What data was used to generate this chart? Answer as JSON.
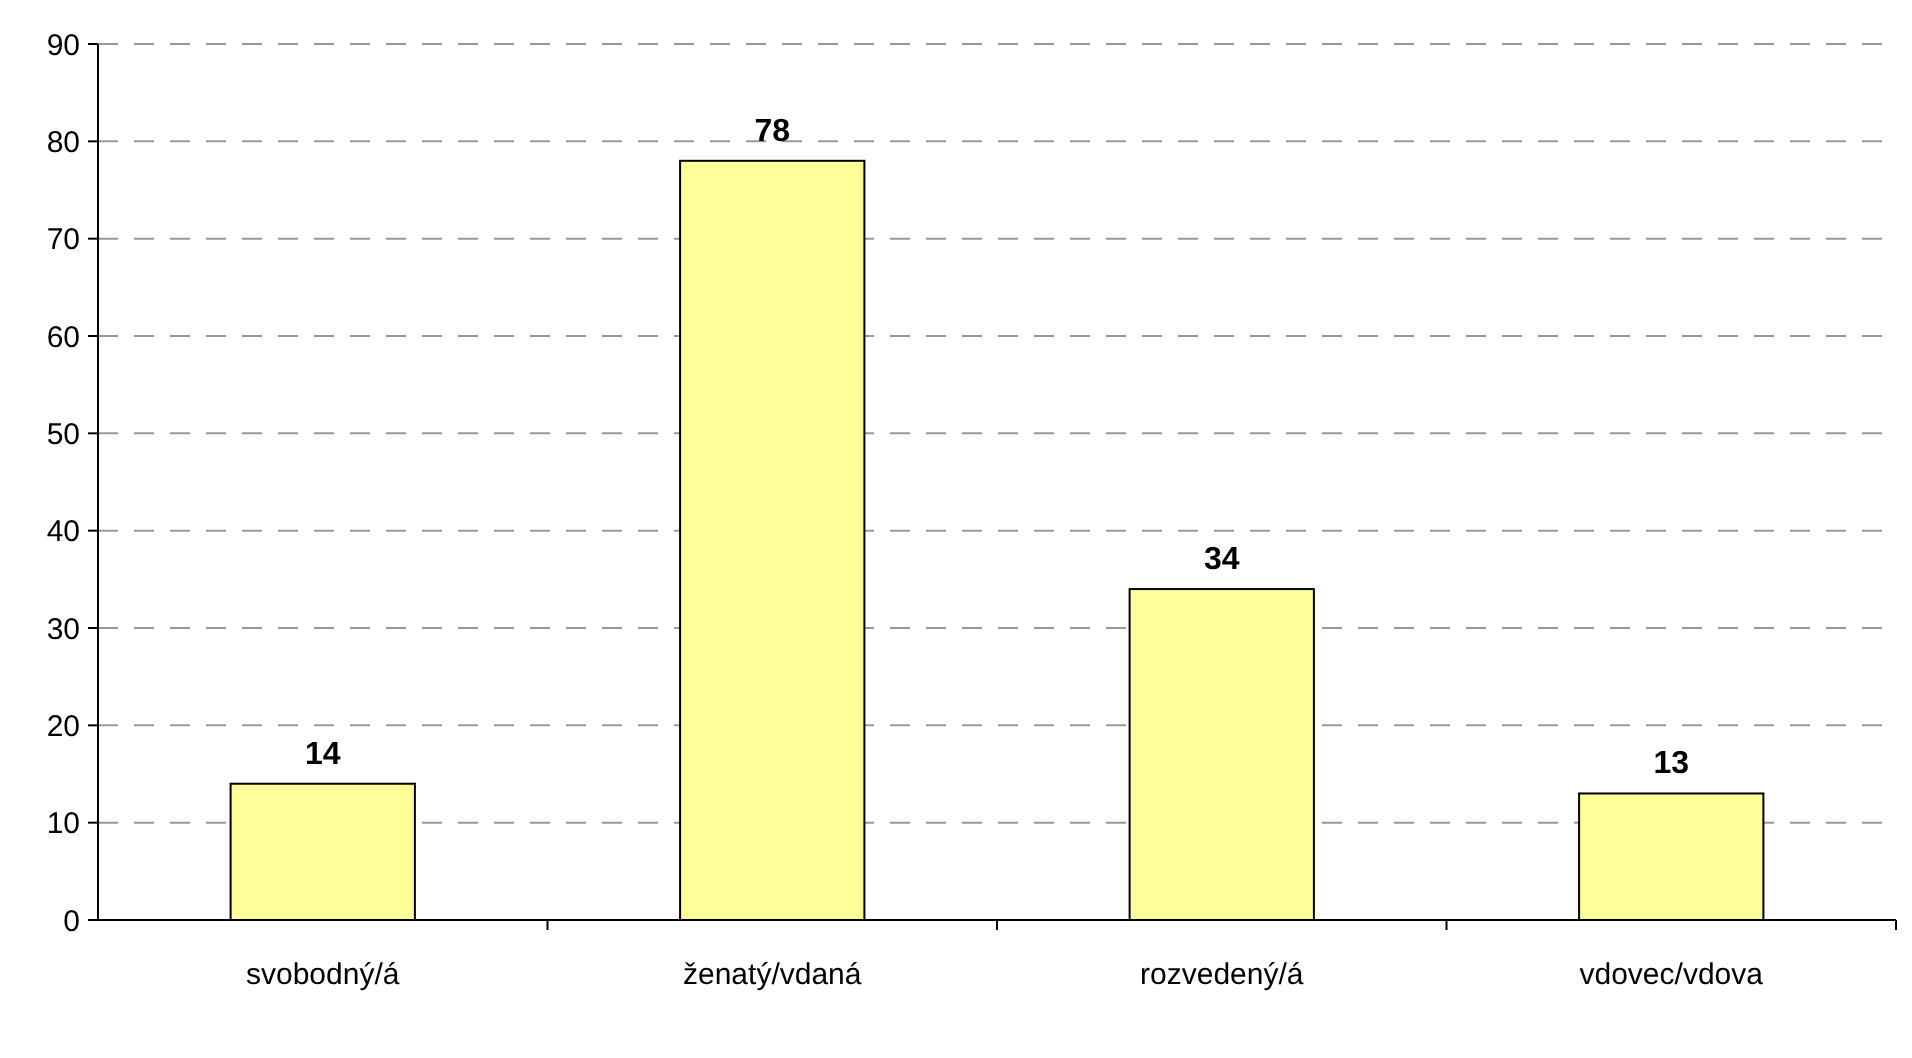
{
  "chart_data": {
    "type": "bar",
    "categories": [
      "svobodný/á",
      "ženatý/vdaná",
      "rozvedený/á",
      "vdovec/vdova"
    ],
    "values": [
      14,
      78,
      34,
      13
    ],
    "color": "#ffff99",
    "ylim": [
      0,
      90
    ],
    "yticks": [
      0,
      10,
      20,
      30,
      40,
      50,
      60,
      70,
      80,
      90
    ],
    "grid": "y",
    "data_labels": true
  }
}
